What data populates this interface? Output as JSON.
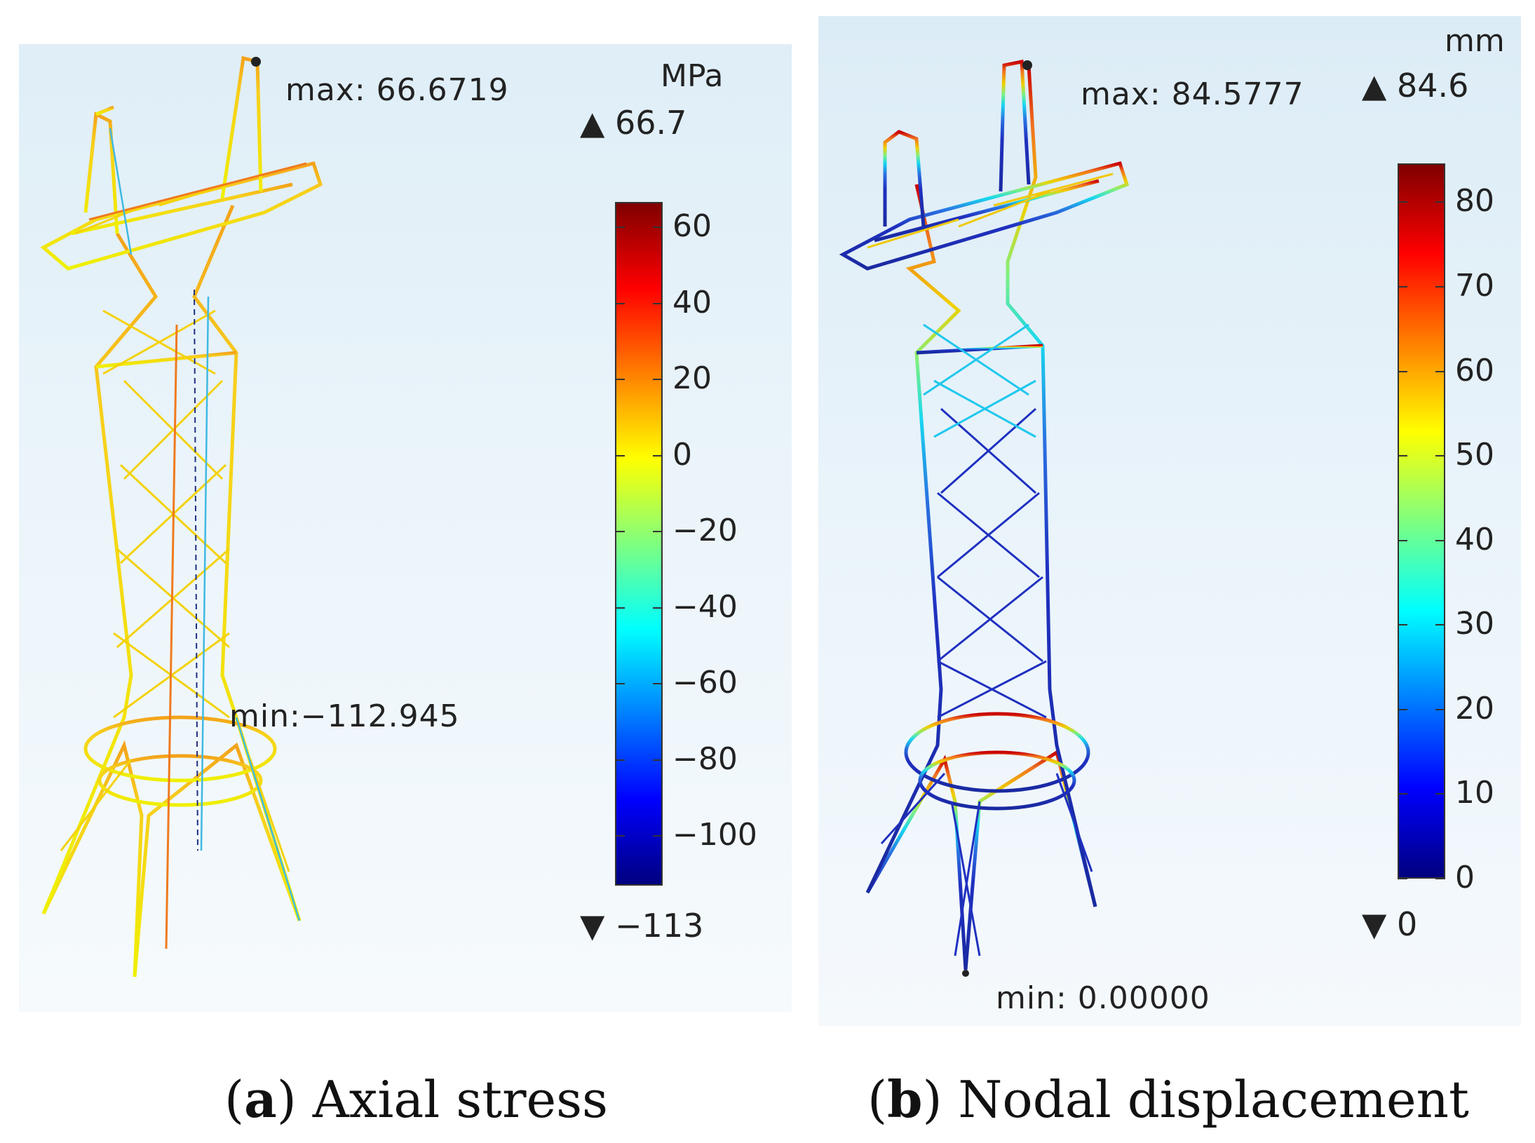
{
  "panels": [
    {
      "id": "a",
      "unit": "MPa",
      "max_note": "max: 66.6719",
      "min_note": "min:−112.945",
      "range_max": "66.7",
      "range_min": "−113",
      "max_marker": "▲",
      "min_marker": "▼",
      "colorbar_ticks": [
        "60",
        "40",
        "20",
        "0",
        "−20",
        "−40",
        "−60",
        "−80",
        "−100"
      ],
      "colorbar_range": [
        -113,
        66.7
      ],
      "colorbar_tick_values": [
        60,
        40,
        20,
        0,
        -20,
        -40,
        -60,
        -80,
        -100
      ],
      "colormap": [
        "#00007f",
        "#0000ff",
        "#007fff",
        "#00ffff",
        "#7fff7f",
        "#ffff00",
        "#ff7f00",
        "#ff0000",
        "#7f0000"
      ],
      "caption_letter": "a",
      "caption_text": " Axial stress"
    },
    {
      "id": "b",
      "unit": "mm",
      "max_note": "max: 84.5777",
      "min_note": "min: 0.00000",
      "range_max": "84.6",
      "range_min": "0",
      "max_marker": "▲",
      "min_marker": "▼",
      "colorbar_ticks": [
        "80",
        "70",
        "60",
        "50",
        "40",
        "30",
        "20",
        "10",
        "0"
      ],
      "colorbar_range": [
        0,
        84.6
      ],
      "colorbar_tick_values": [
        80,
        70,
        60,
        50,
        40,
        30,
        20,
        10,
        0
      ],
      "colormap": [
        "#00007f",
        "#0000ff",
        "#007fff",
        "#00ffff",
        "#7fff7f",
        "#ffff00",
        "#ff7f00",
        "#ff0000",
        "#7f0000"
      ],
      "caption_letter": "b",
      "caption_text": " Nodal displacement"
    }
  ],
  "colors": {
    "stress_tower_main": "#f2d400",
    "stress_tower_edge": "#f07a1e",
    "stress_tower_member": "#46c8e8",
    "displacement_low": "#1f2fb8",
    "displacement_mid": "#12d8f0",
    "displacement_high": "#f0b400",
    "displacement_top": "#d10000"
  }
}
